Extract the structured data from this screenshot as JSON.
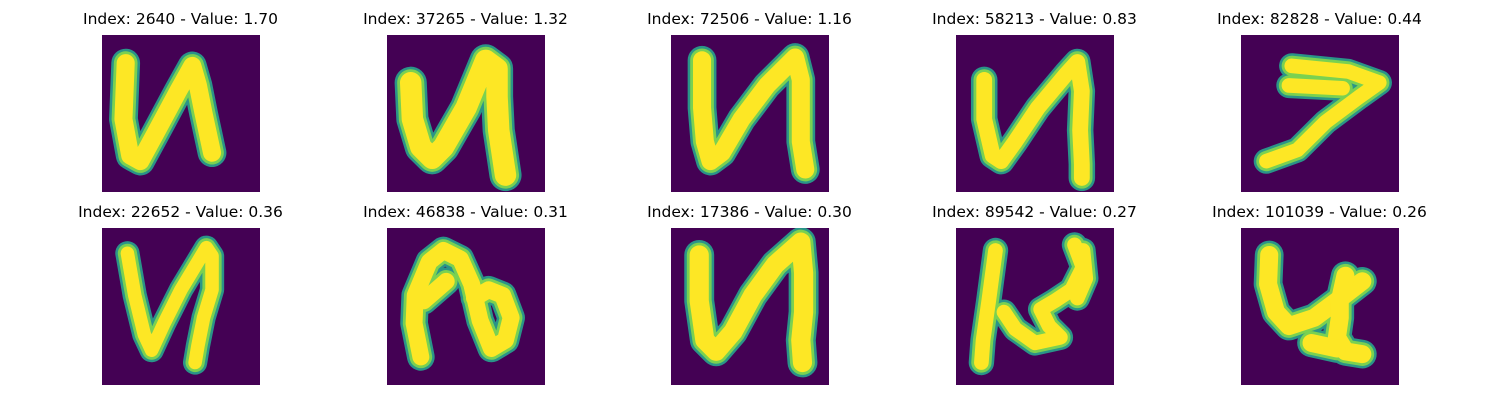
{
  "colors": {
    "background": "#440154",
    "stroke_outer": "#2a9488",
    "stroke_mid": "#7ad151",
    "stroke_core": "#fde725"
  },
  "panels": [
    {
      "title": "Index: 2640 - Value: 1.70",
      "glyph": "n-letter"
    },
    {
      "title": "Index: 37265 - Value: 1.32",
      "glyph": "n-letter"
    },
    {
      "title": "Index: 72506 - Value: 1.16",
      "glyph": "n-letter"
    },
    {
      "title": "Index: 58213 - Value: 0.83",
      "glyph": "n-letter"
    },
    {
      "title": "Index: 82828 - Value: 0.44",
      "glyph": "seven-shape"
    },
    {
      "title": "Index: 22652 - Value: 0.36",
      "glyph": "n-letter"
    },
    {
      "title": "Index: 46838 - Value: 0.31",
      "glyph": "n-letter"
    },
    {
      "title": "Index: 17386 - Value: 0.30",
      "glyph": "n-letter"
    },
    {
      "title": "Index: 89542 - Value: 0.27",
      "glyph": "n-letter"
    },
    {
      "title": "Index: 101039 - Value: 0.26",
      "glyph": "n-letter"
    }
  ]
}
